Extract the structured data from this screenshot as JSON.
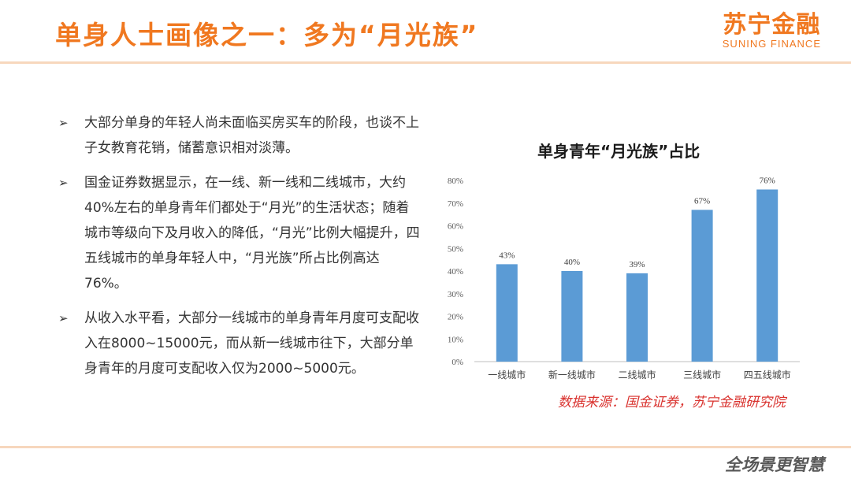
{
  "header": {
    "title": "单身人士画像之一：多为“月光族”",
    "logo_cn": "苏宁金融",
    "logo_en": "SUNING FINANCE"
  },
  "bullets": [
    "大部分单身的年轻人尚未面临买房买车的阶段，也谈不上子女教育花销，储蓄意识相对淡薄。",
    "国金证券数据显示，在一线、新一线和二线城市，大约40%左右的单身青年们都处于“月光”的生活状态；随着城市等级向下及月收入的降低，“月光”比例大幅提升，四五线城市的单身年轻人中，“月光族”所占比例高达76%。",
    "从收入水平看，大部分一线城市的单身青年月度可支配收入在8000~15000元，而从新一线城市往下，大部分单身青年的月度可支配收入仅为2000~5000元。"
  ],
  "bullet_marker": "➢",
  "chart_data": {
    "type": "bar",
    "title": "单身青年“月光族”占比",
    "categories": [
      "一线城市",
      "新一线城市",
      "二线城市",
      "三线城市",
      "四五线城市"
    ],
    "values": [
      43,
      40,
      39,
      67,
      76
    ],
    "value_labels": [
      "43%",
      "40%",
      "39%",
      "67%",
      "76%"
    ],
    "ylim": [
      0,
      80
    ],
    "yticks": [
      0,
      10,
      20,
      30,
      40,
      50,
      60,
      70,
      80
    ],
    "ytick_labels": [
      "0%",
      "10%",
      "20%",
      "30%",
      "40%",
      "50%",
      "60%",
      "70%",
      "80%"
    ],
    "bar_color": "#5b9bd5",
    "grid": false,
    "legend": "none"
  },
  "source_note": "数据来源：国金证券，苏宁金融研究院",
  "footer": {
    "slogan": "全场景更智慧"
  },
  "colors": {
    "accent": "#f07820",
    "source_red": "#d9322e",
    "rule": "#f7d7bd"
  }
}
